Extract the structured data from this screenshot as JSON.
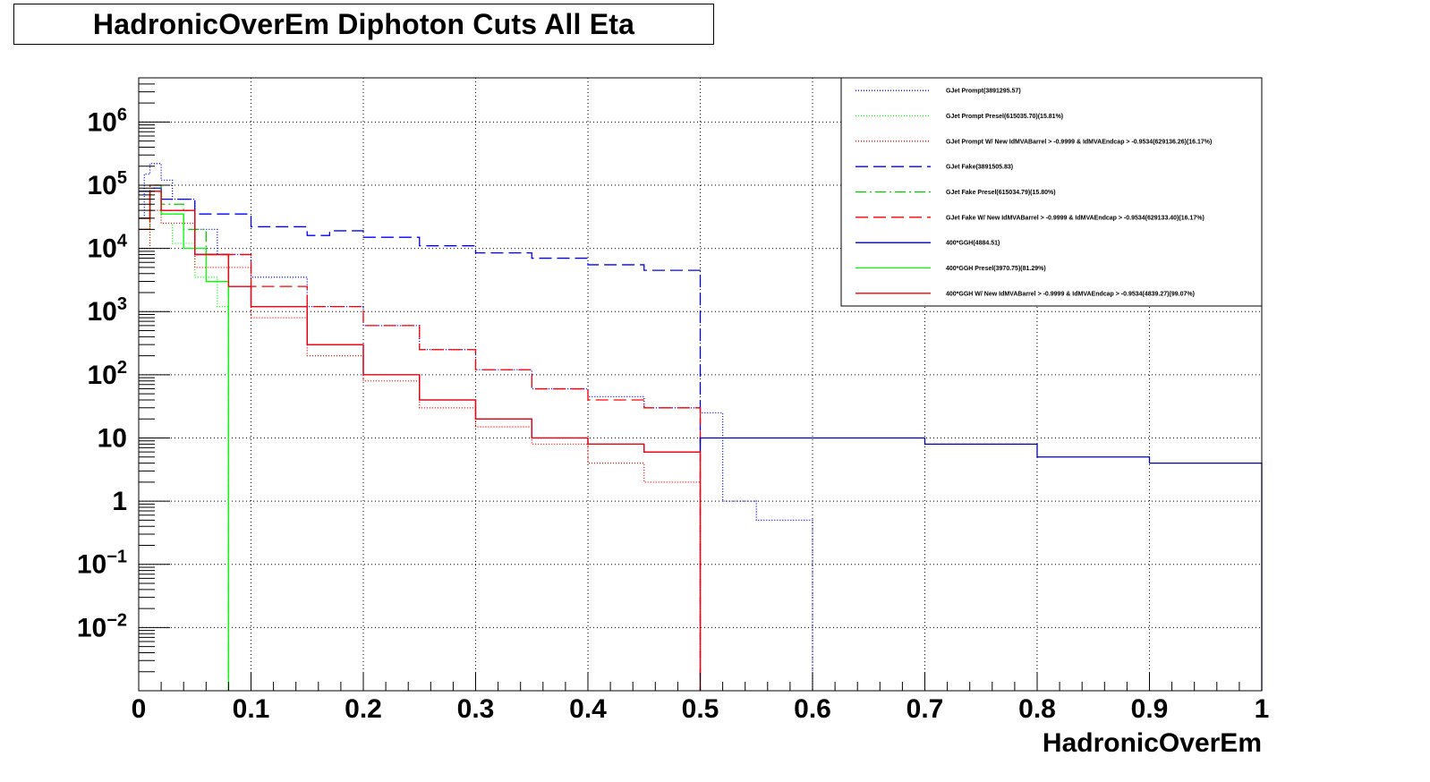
{
  "title": "HadronicOverEm Diphoton Cuts All Eta",
  "chart_data": {
    "type": "line",
    "title": "HadronicOverEm Diphoton Cuts All Eta",
    "xlabel": "HadronicOverEm",
    "ylabel": "",
    "xlim": [
      0,
      1
    ],
    "ylim": [
      0.001,
      5000000
    ],
    "yscale": "log",
    "grid": true,
    "legend_position": "top-right",
    "x_ticks": [
      "0",
      "0.1",
      "0.2",
      "0.3",
      "0.4",
      "0.5",
      "0.6",
      "0.7",
      "0.8",
      "0.9",
      "1"
    ],
    "y_ticks": [
      {
        "base": "10",
        "exp": "6",
        "value": 1000000
      },
      {
        "base": "10",
        "exp": "5",
        "value": 100000
      },
      {
        "base": "10",
        "exp": "4",
        "value": 10000
      },
      {
        "base": "10",
        "exp": "3",
        "value": 1000
      },
      {
        "base": "10",
        "exp": "2",
        "value": 100
      },
      {
        "base": "10",
        "exp": "",
        "value": 10
      },
      {
        "base": "1",
        "exp": "",
        "value": 1
      },
      {
        "base": "10",
        "exp": "−1",
        "value": 0.1
      },
      {
        "base": "10",
        "exp": "−2",
        "value": 0.01
      }
    ],
    "series": [
      {
        "name": "GJet Prompt(3891295.57)",
        "color": "#0000ff",
        "style": "dotted",
        "x": [
          0,
          0.005,
          0.01,
          0.02,
          0.03,
          0.05,
          0.07,
          0.1,
          0.15,
          0.2,
          0.25,
          0.3,
          0.35,
          0.4,
          0.45,
          0.5,
          0.52,
          0.55,
          0.6
        ],
        "y": [
          30000,
          150000,
          220000,
          120000,
          60000,
          20000,
          8000,
          3500,
          1200,
          600,
          250,
          120,
          60,
          45,
          30,
          25,
          1,
          0.5,
          0.001
        ]
      },
      {
        "name": "GJet Prompt Presel(615035.70)(15.81%)",
        "color": "#00ff00",
        "style": "dotted",
        "x": [
          0,
          0.01,
          0.02,
          0.03,
          0.05,
          0.07,
          0.08
        ],
        "y": [
          10000,
          40000,
          25000,
          12000,
          3500,
          1200,
          1000
        ]
      },
      {
        "name": "GJet Prompt W/ New IdMVABarrel > -0.9999 & IdMVAEndcap > -0.9534(629136.26)(16.17%)",
        "color": "#ff0000",
        "style": "dotted",
        "x": [
          0,
          0.01,
          0.02,
          0.05,
          0.1,
          0.15,
          0.2,
          0.25,
          0.3,
          0.35,
          0.4,
          0.45,
          0.5
        ],
        "y": [
          10000,
          40000,
          25000,
          5000,
          800,
          200,
          80,
          30,
          15,
          8,
          4,
          2,
          1
        ]
      },
      {
        "name": "GJet Fake(3891505.83)",
        "color": "#0000ff",
        "style": "long-dash",
        "x": [
          0,
          0.01,
          0.02,
          0.05,
          0.1,
          0.15,
          0.17,
          0.2,
          0.25,
          0.3,
          0.35,
          0.4,
          0.45,
          0.5
        ],
        "y": [
          80000,
          90000,
          60000,
          35000,
          22000,
          16000,
          19000,
          15000,
          11000,
          8500,
          7000,
          5500,
          4500,
          3800
        ]
      },
      {
        "name": "GJet Fake Presel(615034.79)(15.80%)",
        "color": "#00cc00",
        "style": "dash-dot",
        "x": [
          0,
          0.01,
          0.02,
          0.04,
          0.06,
          0.08
        ],
        "y": [
          20000,
          100000,
          50000,
          20000,
          8000,
          5000
        ]
      },
      {
        "name": "GJet Fake W/ New IdMVABarrel > -0.9999 & IdMVAEndcap > -0.9534(629133.40)(16.17%)",
        "color": "#ff0000",
        "style": "long-dash",
        "x": [
          0,
          0.01,
          0.02,
          0.05,
          0.1,
          0.15,
          0.2,
          0.25,
          0.3,
          0.35,
          0.4,
          0.45,
          0.5
        ],
        "y": [
          20000,
          100000,
          40000,
          8000,
          2500,
          1200,
          600,
          250,
          120,
          60,
          40,
          30,
          25
        ]
      },
      {
        "name": "400*GGH(4884.51)",
        "color": "#0000aa",
        "style": "solid",
        "x": [
          0,
          0.01,
          0.02,
          0.05,
          0.08,
          0.1,
          0.15,
          0.2,
          0.25,
          0.3,
          0.35,
          0.4,
          0.45,
          0.5,
          0.6,
          0.7,
          0.8,
          0.9,
          1.0
        ],
        "y": [
          30000,
          80000,
          40000,
          8000,
          2500,
          1200,
          300,
          100,
          40,
          20,
          10,
          8,
          6,
          10,
          10,
          8,
          5,
          4,
          3
        ]
      },
      {
        "name": "400*GGH Presel(3970.75)(81.29%)",
        "color": "#00ff00",
        "style": "solid",
        "x": [
          0,
          0.01,
          0.02,
          0.04,
          0.06,
          0.08
        ],
        "y": [
          30000,
          80000,
          35000,
          10000,
          3000,
          1300
        ]
      },
      {
        "name": "400*GGH W/ New IdMVABarrel > -0.9999 & IdMVAEndcap > -0.9534(4839.27)(99.07%)",
        "color": "#ff0000",
        "style": "solid",
        "x": [
          0,
          0.01,
          0.02,
          0.05,
          0.08,
          0.1,
          0.15,
          0.2,
          0.25,
          0.3,
          0.35,
          0.4,
          0.45,
          0.5
        ],
        "y": [
          30000,
          80000,
          40000,
          8000,
          2500,
          1200,
          300,
          100,
          40,
          20,
          10,
          8,
          6,
          3
        ]
      }
    ]
  }
}
